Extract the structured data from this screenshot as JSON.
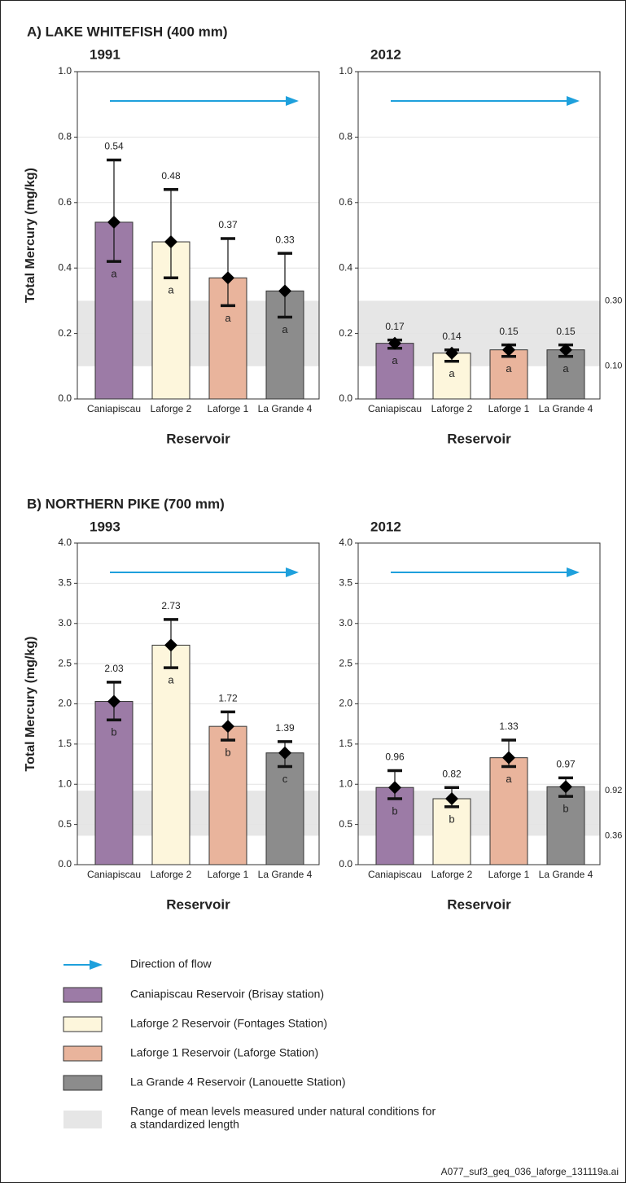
{
  "sections": [
    {
      "title": "A) LAKE WHITEFISH (400 mm)"
    },
    {
      "title": "B) NORTHERN PIKE (700 mm)"
    }
  ],
  "chart_data": [
    {
      "type": "bar",
      "title": "1991",
      "ylabel": "Total Mercury (mg/kg)",
      "xlabel": "Reservoir",
      "categories": [
        "Caniapiscau",
        "Laforge 2",
        "Laforge 1",
        "La Grande 4"
      ],
      "values": [
        0.54,
        0.48,
        0.37,
        0.33
      ],
      "lower": [
        0.42,
        0.37,
        0.285,
        0.25
      ],
      "upper": [
        0.73,
        0.64,
        0.49,
        0.445
      ],
      "letters": [
        "a",
        "a",
        "a",
        "a"
      ],
      "colors": [
        "#9c7ba6",
        "#fdf6dc",
        "#e9b49c",
        "#8c8c8c"
      ],
      "band": [
        0.1,
        0.3
      ],
      "band_color": "#e6e6e6",
      "ylim": [
        0,
        1
      ],
      "yticks": [
        {
          "value": 0,
          "label": "0.0"
        },
        0.2,
        0.4,
        0.6,
        0.8,
        {
          "value": 1,
          "label": "1.0"
        }
      ],
      "grid": true
    },
    {
      "type": "bar",
      "title": "2012",
      "xlabel": "Reservoir",
      "categories": [
        "Caniapiscau",
        "Laforge 2",
        "Laforge 1",
        "La Grande 4"
      ],
      "values": [
        0.17,
        0.14,
        0.15,
        0.15
      ],
      "lower": [
        0.155,
        0.115,
        0.13,
        0.13
      ],
      "upper": [
        0.18,
        0.15,
        0.165,
        0.165
      ],
      "letters": [
        "a",
        "a",
        "a",
        "a"
      ],
      "colors": [
        "#9c7ba6",
        "#fdf6dc",
        "#e9b49c",
        "#8c8c8c"
      ],
      "band": [
        {
          "value": 0.1,
          "label": "0.10"
        },
        {
          "value": 0.3,
          "label": "0.30"
        }
      ],
      "band_color": "#e6e6e6",
      "ylim": [
        0,
        1
      ],
      "yticks": [
        {
          "value": 0,
          "label": "0.0"
        },
        0.2,
        0.4,
        0.6,
        0.8,
        {
          "value": 1,
          "label": "1.0"
        }
      ],
      "grid": true
    },
    {
      "type": "bar",
      "title": "1993",
      "ylabel": "Total Mercury (mg/kg)",
      "xlabel": "Reservoir",
      "categories": [
        "Caniapiscau",
        "Laforge 2",
        "Laforge 1",
        "La Grande 4"
      ],
      "values": [
        2.03,
        2.73,
        1.72,
        1.39
      ],
      "lower": [
        1.8,
        2.45,
        1.55,
        1.22
      ],
      "upper": [
        2.27,
        3.05,
        1.9,
        1.53
      ],
      "letters": [
        "b",
        "a",
        "b",
        "c"
      ],
      "colors": [
        "#9c7ba6",
        "#fdf6dc",
        "#e9b49c",
        "#8c8c8c"
      ],
      "band": [
        0.36,
        0.92
      ],
      "band_color": "#e6e6e6",
      "ylim": [
        0,
        4
      ],
      "yticks": [
        {
          "value": 0,
          "label": "0.0"
        },
        0.5,
        {
          "value": 1,
          "label": "1.0"
        },
        1.5,
        {
          "value": 2,
          "label": "2.0"
        },
        2.5,
        {
          "value": 3,
          "label": "3.0"
        },
        3.5,
        {
          "value": 4,
          "label": "4.0"
        }
      ],
      "grid": true
    },
    {
      "type": "bar",
      "title": "2012",
      "xlabel": "Reservoir",
      "categories": [
        "Caniapiscau",
        "Laforge 2",
        "Laforge 1",
        "La Grande 4"
      ],
      "values": [
        0.96,
        0.82,
        1.33,
        0.97
      ],
      "lower": [
        0.82,
        0.72,
        1.22,
        0.85
      ],
      "upper": [
        1.17,
        0.96,
        1.55,
        1.08
      ],
      "letters": [
        "b",
        "b",
        "a",
        "b"
      ],
      "colors": [
        "#9c7ba6",
        "#fdf6dc",
        "#e9b49c",
        "#8c8c8c"
      ],
      "band": [
        {
          "value": 0.36,
          "label": "0.36"
        },
        {
          "value": 0.92,
          "label": "0.92"
        }
      ],
      "band_color": "#e6e6e6",
      "ylim": [
        0,
        4
      ],
      "yticks": [
        {
          "value": 0,
          "label": "0.0"
        },
        0.5,
        {
          "value": 1,
          "label": "1.0"
        },
        1.5,
        {
          "value": 2,
          "label": "2.0"
        },
        2.5,
        {
          "value": 3,
          "label": "3.0"
        },
        3.5,
        {
          "value": 4,
          "label": "4.0"
        }
      ],
      "grid": true
    }
  ],
  "legend": {
    "flow": "Direction of flow",
    "items": [
      "Caniapiscau Reservoir (Brisay station)",
      "Laforge 2 Reservoir (Fontages Station)",
      "Laforge 1 Reservoir (Laforge Station)",
      "La Grande 4 Reservoir (Lanouette Station)"
    ],
    "band": [
      "Range of mean levels measured under natural conditions for",
      "a standardized length"
    ]
  },
  "footer": "A077_suf3_geq_036_laforge_131119a.ai"
}
